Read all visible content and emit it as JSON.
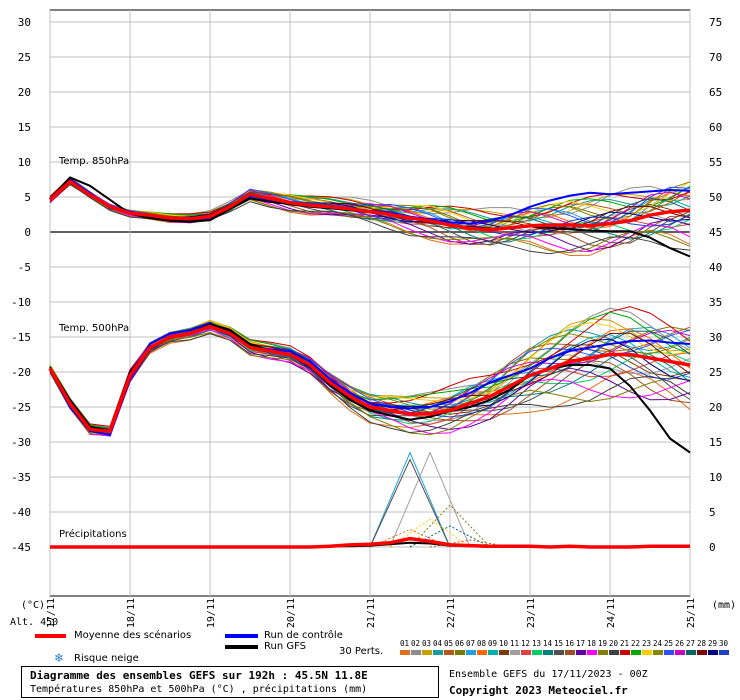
{
  "chart_data": {
    "type": "line",
    "title": "Diagramme des ensembles GEFS sur 192h : 45.5N 11.8E",
    "subtitle": "Températures 850hPa et 500hPa (°C) , précipitations (mm)",
    "run_info": "Ensemble GEFS du 17/11/2023 - 00Z",
    "copyright": "Copyright 2023 Meteociel.fr",
    "left_axis": {
      "label": "(°C)",
      "ylim": [
        -55,
        30
      ],
      "ticks": [
        30,
        25,
        20,
        15,
        10,
        5,
        0,
        -5,
        -10,
        -15,
        -20,
        -25,
        -30,
        -35,
        -40,
        -45
      ]
    },
    "right_axis": {
      "label": "(mm)",
      "ylim": [
        0,
        75
      ],
      "ticks": [
        75,
        70,
        65,
        60,
        55,
        50,
        45,
        40,
        35,
        30,
        25,
        20,
        15,
        10,
        5,
        0
      ]
    },
    "x_ticks": [
      "17/11",
      "18/11",
      "19/11",
      "20/11",
      "21/11",
      "22/11",
      "23/11",
      "24/11",
      "25/11"
    ],
    "altitude_label": "Alt. 450",
    "panel_labels": {
      "t850": "Temp. 850hPa",
      "t500": "Temp. 500hPa",
      "precip": "Précipitations"
    },
    "x_hours": [
      0,
      6,
      12,
      18,
      24,
      30,
      36,
      42,
      48,
      54,
      60,
      66,
      72,
      78,
      84,
      90,
      96,
      102,
      108,
      114,
      120,
      126,
      132,
      138,
      144,
      150,
      156,
      162,
      168,
      174,
      180,
      186,
      192
    ],
    "series": [
      {
        "name": "Moyenne des scénarios",
        "panel": "t850",
        "values": [
          4.6,
          7.2,
          5.3,
          3.6,
          2.7,
          2.4,
          2.0,
          1.9,
          2.2,
          3.6,
          5.4,
          4.8,
          4.2,
          3.8,
          3.6,
          3.3,
          2.9,
          2.5,
          2.0,
          1.6,
          1.0,
          0.5,
          0.3,
          0.6,
          0.9,
          1.0,
          1.0,
          0.9,
          1.2,
          1.6,
          2.4,
          2.9,
          3.1
        ]
      },
      {
        "name": "Moyenne des scénarios",
        "panel": "t500",
        "values": [
          -19.5,
          -24.5,
          -28.2,
          -28.5,
          -20.5,
          -16.5,
          -15.0,
          -14.5,
          -13.5,
          -14.5,
          -16.5,
          -17.0,
          -17.5,
          -19.0,
          -21.5,
          -23.5,
          -25.0,
          -25.5,
          -26.0,
          -26.0,
          -25.5,
          -24.5,
          -23.5,
          -22.0,
          -20.5,
          -19.5,
          -18.5,
          -18.0,
          -17.5,
          -17.5,
          -18.0,
          -18.5,
          -19.0
        ]
      },
      {
        "name": "Moyenne des scénarios",
        "panel": "precip",
        "values": [
          0,
          0,
          0,
          0,
          0,
          0,
          0,
          0,
          0,
          0,
          0,
          0,
          0,
          0,
          0.1,
          0.3,
          0.4,
          0.6,
          1.2,
          0.8,
          0.3,
          0.2,
          0.1,
          0.1,
          0.1,
          0,
          0.1,
          0,
          0,
          0,
          0.1,
          0.1,
          0.1
        ]
      },
      {
        "name": "Run de contrôle",
        "panel": "t850",
        "values": [
          4.8,
          7.5,
          5.6,
          3.4,
          2.9,
          2.2,
          1.8,
          1.7,
          2.0,
          3.4,
          5.2,
          4.6,
          4.0,
          3.7,
          3.5,
          3.3,
          3.0,
          2.8,
          2.2,
          1.8,
          1.4,
          1.2,
          1.6,
          2.4,
          3.6,
          4.5,
          5.2,
          5.6,
          5.4,
          5.6,
          5.8,
          6.0,
          5.9
        ]
      },
      {
        "name": "Run de contrôle",
        "panel": "t500",
        "values": [
          -19.6,
          -25.0,
          -28.4,
          -29.0,
          -21.0,
          -16.0,
          -14.5,
          -14.0,
          -13.0,
          -14.5,
          -16.5,
          -16.8,
          -17.0,
          -18.5,
          -21.0,
          -23.0,
          -24.5,
          -25.0,
          -25.2,
          -25.0,
          -24.2,
          -23.0,
          -21.5,
          -20.5,
          -19.5,
          -18.0,
          -17.0,
          -16.5,
          -16.0,
          -15.6,
          -15.5,
          -15.8,
          -16.0
        ]
      },
      {
        "name": "Run GFS",
        "panel": "t850",
        "values": [
          4.7,
          7.8,
          6.6,
          4.6,
          2.6,
          2.0,
          1.6,
          1.5,
          1.7,
          3.3,
          4.8,
          4.3,
          4.0,
          3.6,
          3.4,
          3.1,
          2.8,
          2.5,
          2.0,
          1.5,
          1.0,
          0.7,
          0.5,
          0.6,
          0.8,
          0.6,
          0.4,
          0.2,
          0.1,
          0.1,
          -0.8,
          -2.3,
          -3.5
        ]
      },
      {
        "name": "Run GFS",
        "panel": "t500",
        "values": [
          -19.3,
          -24.0,
          -27.8,
          -28.4,
          -20.0,
          -16.5,
          -15.0,
          -14.5,
          -13.2,
          -14.0,
          -16.0,
          -17.0,
          -17.6,
          -19.2,
          -21.8,
          -24.0,
          -25.5,
          -26.2,
          -26.8,
          -26.4,
          -25.6,
          -25.0,
          -24.0,
          -22.5,
          -20.5,
          -19.5,
          -19.0,
          -19.0,
          -19.5,
          -22.0,
          -25.5,
          -29.5,
          -31.5
        ]
      },
      {
        "name": "Run GFS",
        "panel": "precip",
        "values": [
          0,
          0,
          0,
          0,
          0,
          0,
          0,
          0,
          0,
          0,
          0,
          0,
          0,
          0,
          0.1,
          0.1,
          0.2,
          0.4,
          0.6,
          0.5,
          0.2,
          0.1,
          0,
          0,
          0,
          0,
          0,
          0,
          0,
          0,
          0,
          0,
          0
        ]
      }
    ],
    "perturbations": {
      "count_label": "30 Perts.",
      "labels": [
        "01",
        "02",
        "03",
        "04",
        "05",
        "06",
        "07",
        "08",
        "09",
        "10",
        "11",
        "12",
        "13",
        "14",
        "15",
        "16",
        "17",
        "18",
        "19",
        "20",
        "21",
        "22",
        "23",
        "24",
        "25",
        "26",
        "27",
        "28",
        "29",
        "30"
      ],
      "colors": [
        "#e07020",
        "#8c8c8c",
        "#c8a000",
        "#1a9a9a",
        "#b05a1a",
        "#7a7a00",
        "#20a0e0",
        "#ff6600",
        "#00b0b0",
        "#7a3c00",
        "#a0a0a0",
        "#e04040",
        "#00cc66",
        "#008080",
        "#505050",
        "#a05020",
        "#6000a0",
        "#ff00ff",
        "#808000",
        "#404040",
        "#cc0000",
        "#00aa00",
        "#ffcc00",
        "#888800",
        "#3050ff",
        "#cc00cc",
        "#006666",
        "#800000",
        "#000080",
        "#2040c0"
      ],
      "t850_spread": [
        0.5,
        0.6,
        0.5,
        0.5,
        0.5,
        0.5,
        0.6,
        0.7,
        0.8,
        0.9,
        1.0,
        1.1,
        1.2,
        1.3,
        1.4,
        1.6,
        1.8,
        2.0,
        2.2,
        2.4,
        2.6,
        2.8,
        3.0,
        3.2,
        3.4,
        3.6,
        3.8,
        4.0,
        4.2,
        4.4,
        4.6,
        4.8,
        5.0
      ],
      "t500_spread": [
        0.6,
        0.8,
        0.8,
        0.8,
        1.2,
        1.0,
        0.9,
        0.9,
        1.0,
        1.0,
        1.2,
        1.3,
        1.4,
        1.6,
        1.8,
        2.0,
        2.2,
        2.4,
        2.8,
        3.2,
        3.6,
        4.0,
        4.4,
        4.8,
        5.2,
        5.6,
        6.0,
        6.4,
        6.8,
        7.0,
        7.2,
        7.4,
        7.6
      ],
      "precip_peaks": [
        {
          "hour": 108,
          "value": 13.5
        },
        {
          "hour": 114,
          "value": 13.5
        },
        {
          "hour": 108,
          "value": 12.5
        },
        {
          "hour": 120,
          "value": 6.0
        },
        {
          "hour": 114,
          "value": 4.0
        },
        {
          "hour": 120,
          "value": 3.0
        },
        {
          "hour": 108,
          "value": 2.5
        },
        {
          "hour": 126,
          "value": 1.0
        }
      ]
    },
    "legend": {
      "mean": "Moyenne des scénarios",
      "control": "Run de contrôle",
      "gfs": "Run GFS",
      "snow": "Risque neige",
      "colors": {
        "mean": "#ff0000",
        "control": "#0000ff",
        "gfs": "#000000"
      }
    },
    "grid": true
  }
}
